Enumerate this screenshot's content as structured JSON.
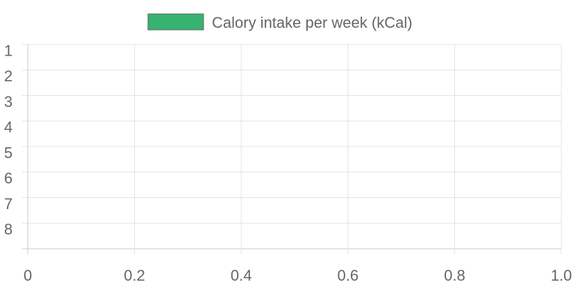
{
  "chart_data": {
    "type": "bar",
    "orientation": "horizontal",
    "categories": [
      "1",
      "2",
      "3",
      "4",
      "5",
      "6",
      "7",
      "8"
    ],
    "series": [
      {
        "name": "Calory intake per week (kCal)",
        "color": "#36b371",
        "values": [
          null,
          null,
          null,
          null,
          null,
          null,
          null,
          null
        ]
      }
    ],
    "xlim": [
      0,
      1.0
    ],
    "x_ticks": [
      "0",
      "0.2",
      "0.4",
      "0.6",
      "0.8",
      "1.0"
    ],
    "grid": true,
    "legend": "top-center"
  }
}
